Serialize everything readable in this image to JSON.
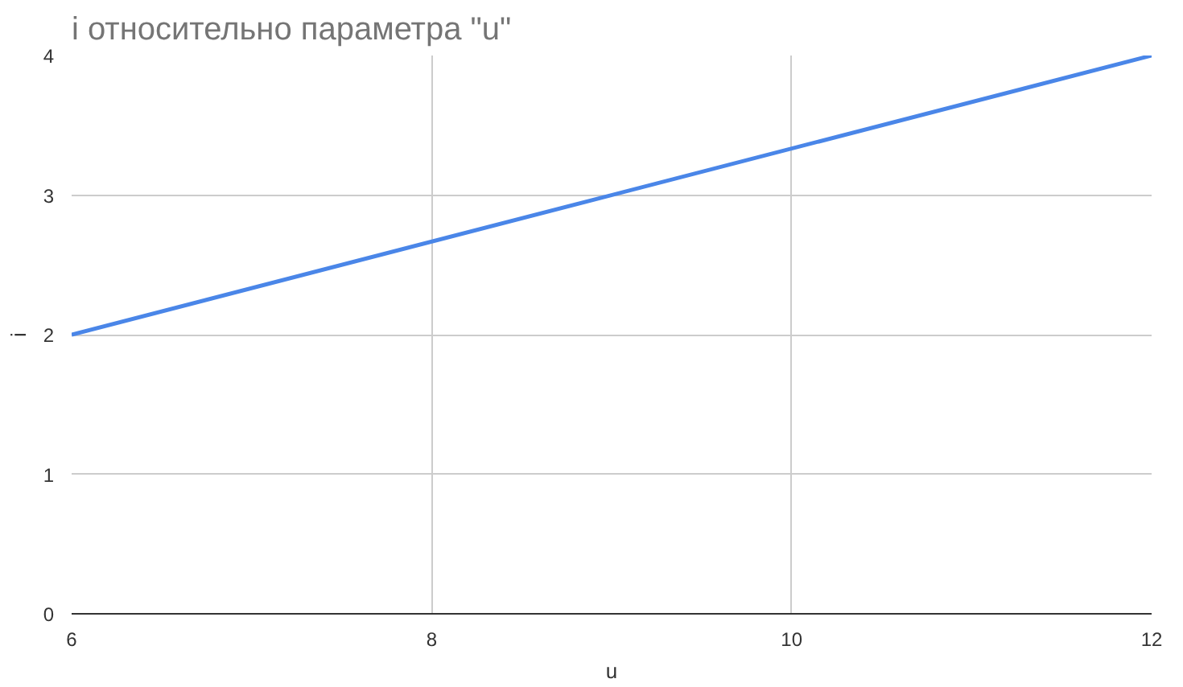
{
  "chart_data": {
    "type": "line",
    "title": "i относительно параметра \"u\"",
    "xlabel": "u",
    "ylabel": "i",
    "x": [
      6,
      12
    ],
    "series": [
      {
        "color": "#4a86e8",
        "values": [
          2,
          4
        ]
      }
    ],
    "xlim": [
      6,
      12
    ],
    "xticks": [
      6,
      8,
      10,
      12
    ],
    "ylim": [
      0,
      4
    ],
    "yticks": [
      0,
      1,
      2,
      3,
      4
    ],
    "grid": true,
    "marker": "none",
    "line_style": "solid"
  }
}
